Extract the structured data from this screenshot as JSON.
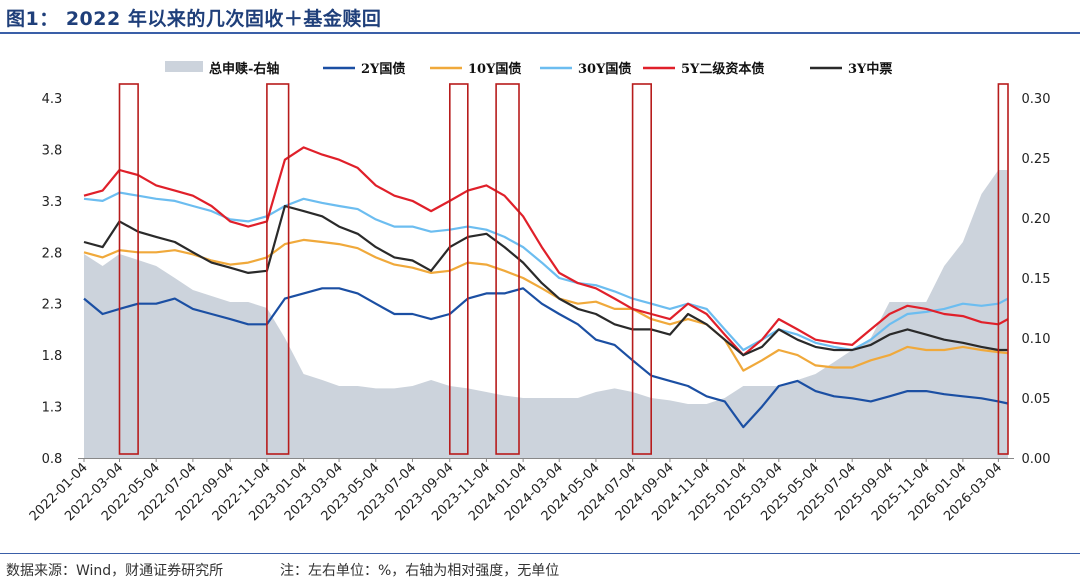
{
  "figure_title": "图1：  2022 年以来的几次固收＋基金赎回",
  "source_note": "数据来源：Wind，财通证券研究所",
  "unit_note": "注：左右单位：%，右轴为相对强度，无单位",
  "chart_data": {
    "type": "line",
    "legend_position": "top",
    "grid": false,
    "x_tick_labels": [
      "2022-01-04",
      "2022-03-04",
      "2022-05-04",
      "2022-07-04",
      "2022-09-04",
      "2022-11-04",
      "2023-01-04",
      "2023-03-04",
      "2023-05-04",
      "2023-07-04",
      "2023-09-04",
      "2023-11-04",
      "2024-01-04",
      "2024-03-04",
      "2024-05-04",
      "2024-07-04",
      "2024-09-04",
      "2024-11-04",
      "2025-01-04",
      "2025-03-04",
      "2025-05-04",
      "2025-07-04",
      "2025-09-04",
      "2025-11-04",
      "2026-01-04",
      "2026-03-04"
    ],
    "left_axis": {
      "ylim": [
        0.8,
        4.3
      ],
      "tick_labels": [
        "0.8",
        "1.3",
        "1.8",
        "2.3",
        "2.8",
        "3.3",
        "3.8",
        "4.3"
      ]
    },
    "right_axis": {
      "ylim": [
        0.0,
        0.3
      ],
      "tick_labels": [
        "0.00",
        "0.05",
        "0.10",
        "0.15",
        "0.20",
        "0.25",
        "0.30"
      ]
    },
    "series": [
      {
        "name": "总申赎-右轴",
        "kind": "area",
        "axis": "right",
        "color": "#ccd3dc",
        "x": [
          "2022-01-04",
          "2022-02-04",
          "2022-03-04",
          "2022-04-04",
          "2022-05-04",
          "2022-06-04",
          "2022-07-04",
          "2022-08-04",
          "2022-09-04",
          "2022-10-04",
          "2022-11-04",
          "2022-12-04",
          "2023-01-04",
          "2023-02-04",
          "2023-03-04",
          "2023-04-04",
          "2023-05-04",
          "2023-06-04",
          "2023-07-04",
          "2023-08-04",
          "2023-09-04",
          "2023-10-04",
          "2023-11-04",
          "2023-12-04",
          "2024-01-04",
          "2024-02-04",
          "2024-03-04",
          "2024-04-04",
          "2024-05-04",
          "2024-06-04",
          "2024-07-04",
          "2024-08-04",
          "2024-09-04",
          "2024-10-04",
          "2024-11-04",
          "2024-12-04",
          "2025-01-04",
          "2025-02-04",
          "2025-03-04",
          "2025-04-04",
          "2025-05-04",
          "2025-06-04",
          "2025-07-04",
          "2025-08-04",
          "2025-09-04",
          "2025-10-04",
          "2025-11-04",
          "2025-12-04",
          "2026-01-04",
          "2026-02-04",
          "2026-03-04",
          "2026-03-20"
        ],
        "values": [
          0.17,
          0.16,
          0.17,
          0.165,
          0.16,
          0.15,
          0.14,
          0.135,
          0.13,
          0.13,
          0.125,
          0.1,
          0.07,
          0.065,
          0.06,
          0.06,
          0.058,
          0.058,
          0.06,
          0.065,
          0.06,
          0.058,
          0.055,
          0.052,
          0.05,
          0.05,
          0.05,
          0.05,
          0.055,
          0.058,
          0.055,
          0.05,
          0.048,
          0.045,
          0.045,
          0.05,
          0.06,
          0.06,
          0.06,
          0.065,
          0.07,
          0.08,
          0.09,
          0.1,
          0.13,
          0.13,
          0.13,
          0.16,
          0.18,
          0.22,
          0.24,
          0.24
        ]
      },
      {
        "name": "2Y国债",
        "kind": "line",
        "axis": "left",
        "color": "#1b4fa3",
        "x": [
          "2022-01-04",
          "2022-02-04",
          "2022-03-04",
          "2022-04-04",
          "2022-05-04",
          "2022-06-04",
          "2022-07-04",
          "2022-08-04",
          "2022-09-04",
          "2022-10-04",
          "2022-11-04",
          "2022-12-04",
          "2023-01-04",
          "2023-02-04",
          "2023-03-04",
          "2023-04-04",
          "2023-05-04",
          "2023-06-04",
          "2023-07-04",
          "2023-08-04",
          "2023-09-04",
          "2023-10-04",
          "2023-11-04",
          "2023-12-04",
          "2024-01-04",
          "2024-02-04",
          "2024-03-04",
          "2024-04-04",
          "2024-05-04",
          "2024-06-04",
          "2024-07-04",
          "2024-08-04",
          "2024-09-04",
          "2024-10-04",
          "2024-11-04",
          "2024-12-04",
          "2025-01-04",
          "2025-02-04",
          "2025-03-04",
          "2025-04-04",
          "2025-05-04",
          "2025-06-04",
          "2025-07-04",
          "2025-08-04",
          "2025-09-04",
          "2025-10-04",
          "2025-11-04",
          "2025-12-04",
          "2026-01-04",
          "2026-02-04",
          "2026-03-04",
          "2026-03-20"
        ],
        "values": [
          2.35,
          2.2,
          2.25,
          2.3,
          2.3,
          2.35,
          2.25,
          2.2,
          2.15,
          2.1,
          2.1,
          2.35,
          2.4,
          2.45,
          2.45,
          2.4,
          2.3,
          2.2,
          2.2,
          2.15,
          2.2,
          2.35,
          2.4,
          2.4,
          2.45,
          2.3,
          2.2,
          2.1,
          1.95,
          1.9,
          1.75,
          1.6,
          1.55,
          1.5,
          1.4,
          1.35,
          1.1,
          1.3,
          1.5,
          1.55,
          1.45,
          1.4,
          1.38,
          1.35,
          1.4,
          1.45,
          1.45,
          1.42,
          1.4,
          1.38,
          1.35,
          1.33
        ]
      },
      {
        "name": "10Y国债",
        "kind": "line",
        "axis": "left",
        "color": "#f0a93b",
        "x": [
          "2022-01-04",
          "2022-02-04",
          "2022-03-04",
          "2022-04-04",
          "2022-05-04",
          "2022-06-04",
          "2022-07-04",
          "2022-08-04",
          "2022-09-04",
          "2022-10-04",
          "2022-11-04",
          "2022-12-04",
          "2023-01-04",
          "2023-02-04",
          "2023-03-04",
          "2023-04-04",
          "2023-05-04",
          "2023-06-04",
          "2023-07-04",
          "2023-08-04",
          "2023-09-04",
          "2023-10-04",
          "2023-11-04",
          "2023-12-04",
          "2024-01-04",
          "2024-02-04",
          "2024-03-04",
          "2024-04-04",
          "2024-05-04",
          "2024-06-04",
          "2024-07-04",
          "2024-08-04",
          "2024-09-04",
          "2024-10-04",
          "2024-11-04",
          "2024-12-04",
          "2025-01-04",
          "2025-02-04",
          "2025-03-04",
          "2025-04-04",
          "2025-05-04",
          "2025-06-04",
          "2025-07-04",
          "2025-08-04",
          "2025-09-04",
          "2025-10-04",
          "2025-11-04",
          "2025-12-04",
          "2026-01-04",
          "2026-02-04",
          "2026-03-04",
          "2026-03-20"
        ],
        "values": [
          2.8,
          2.75,
          2.82,
          2.8,
          2.8,
          2.82,
          2.78,
          2.72,
          2.68,
          2.7,
          2.75,
          2.88,
          2.92,
          2.9,
          2.88,
          2.84,
          2.75,
          2.68,
          2.65,
          2.6,
          2.62,
          2.7,
          2.68,
          2.62,
          2.55,
          2.45,
          2.35,
          2.3,
          2.32,
          2.25,
          2.25,
          2.15,
          2.1,
          2.15,
          2.1,
          1.95,
          1.65,
          1.75,
          1.85,
          1.8,
          1.7,
          1.68,
          1.68,
          1.75,
          1.8,
          1.88,
          1.85,
          1.85,
          1.88,
          1.85,
          1.83,
          1.82
        ]
      },
      {
        "name": "30Y国债",
        "kind": "line",
        "axis": "left",
        "color": "#6cbdf0",
        "x": [
          "2022-01-04",
          "2022-02-04",
          "2022-03-04",
          "2022-04-04",
          "2022-05-04",
          "2022-06-04",
          "2022-07-04",
          "2022-08-04",
          "2022-09-04",
          "2022-10-04",
          "2022-11-04",
          "2022-12-04",
          "2023-01-04",
          "2023-02-04",
          "2023-03-04",
          "2023-04-04",
          "2023-05-04",
          "2023-06-04",
          "2023-07-04",
          "2023-08-04",
          "2023-09-04",
          "2023-10-04",
          "2023-11-04",
          "2023-12-04",
          "2024-01-04",
          "2024-02-04",
          "2024-03-04",
          "2024-04-04",
          "2024-05-04",
          "2024-06-04",
          "2024-07-04",
          "2024-08-04",
          "2024-09-04",
          "2024-10-04",
          "2024-11-04",
          "2024-12-04",
          "2025-01-04",
          "2025-02-04",
          "2025-03-04",
          "2025-04-04",
          "2025-05-04",
          "2025-06-04",
          "2025-07-04",
          "2025-08-04",
          "2025-09-04",
          "2025-10-04",
          "2025-11-04",
          "2025-12-04",
          "2026-01-04",
          "2026-02-04",
          "2026-03-04",
          "2026-03-20"
        ],
        "values": [
          3.32,
          3.3,
          3.38,
          3.35,
          3.32,
          3.3,
          3.25,
          3.2,
          3.12,
          3.1,
          3.15,
          3.25,
          3.32,
          3.28,
          3.25,
          3.22,
          3.12,
          3.05,
          3.05,
          3.0,
          3.02,
          3.05,
          3.02,
          2.95,
          2.85,
          2.7,
          2.55,
          2.5,
          2.48,
          2.42,
          2.35,
          2.3,
          2.25,
          2.3,
          2.25,
          2.05,
          1.85,
          1.95,
          2.05,
          2.0,
          1.92,
          1.88,
          1.85,
          1.95,
          2.1,
          2.2,
          2.22,
          2.25,
          2.3,
          2.28,
          2.3,
          2.35
        ]
      },
      {
        "name": "5Y二级资本债",
        "kind": "line",
        "axis": "left",
        "color": "#e0202a",
        "x": [
          "2022-01-04",
          "2022-02-04",
          "2022-03-04",
          "2022-04-04",
          "2022-05-04",
          "2022-06-04",
          "2022-07-04",
          "2022-08-04",
          "2022-09-04",
          "2022-10-04",
          "2022-11-04",
          "2022-12-04",
          "2023-01-04",
          "2023-02-04",
          "2023-03-04",
          "2023-04-04",
          "2023-05-04",
          "2023-06-04",
          "2023-07-04",
          "2023-08-04",
          "2023-09-04",
          "2023-10-04",
          "2023-11-04",
          "2023-12-04",
          "2024-01-04",
          "2024-02-04",
          "2024-03-04",
          "2024-04-04",
          "2024-05-04",
          "2024-06-04",
          "2024-07-04",
          "2024-08-04",
          "2024-09-04",
          "2024-10-04",
          "2024-11-04",
          "2024-12-04",
          "2025-01-04",
          "2025-02-04",
          "2025-03-04",
          "2025-04-04",
          "2025-05-04",
          "2025-06-04",
          "2025-07-04",
          "2025-08-04",
          "2025-09-04",
          "2025-10-04",
          "2025-11-04",
          "2025-12-04",
          "2026-01-04",
          "2026-02-04",
          "2026-03-04",
          "2026-03-20"
        ],
        "values": [
          3.35,
          3.4,
          3.6,
          3.55,
          3.45,
          3.4,
          3.35,
          3.25,
          3.1,
          3.05,
          3.1,
          3.7,
          3.82,
          3.75,
          3.7,
          3.62,
          3.45,
          3.35,
          3.3,
          3.2,
          3.3,
          3.4,
          3.45,
          3.35,
          3.15,
          2.85,
          2.6,
          2.5,
          2.45,
          2.35,
          2.25,
          2.2,
          2.15,
          2.3,
          2.2,
          2.0,
          1.8,
          1.95,
          2.15,
          2.05,
          1.95,
          1.92,
          1.9,
          2.05,
          2.2,
          2.28,
          2.25,
          2.2,
          2.18,
          2.12,
          2.1,
          2.15
        ]
      },
      {
        "name": "3Y中票",
        "kind": "line",
        "axis": "left",
        "color": "#2a2a2a",
        "x": [
          "2022-01-04",
          "2022-02-04",
          "2022-03-04",
          "2022-04-04",
          "2022-05-04",
          "2022-06-04",
          "2022-07-04",
          "2022-08-04",
          "2022-09-04",
          "2022-10-04",
          "2022-11-04",
          "2022-12-04",
          "2023-01-04",
          "2023-02-04",
          "2023-03-04",
          "2023-04-04",
          "2023-05-04",
          "2023-06-04",
          "2023-07-04",
          "2023-08-04",
          "2023-09-04",
          "2023-10-04",
          "2023-11-04",
          "2023-12-04",
          "2024-01-04",
          "2024-02-04",
          "2024-03-04",
          "2024-04-04",
          "2024-05-04",
          "2024-06-04",
          "2024-07-04",
          "2024-08-04",
          "2024-09-04",
          "2024-10-04",
          "2024-11-04",
          "2024-12-04",
          "2025-01-04",
          "2025-02-04",
          "2025-03-04",
          "2025-04-04",
          "2025-05-04",
          "2025-06-04",
          "2025-07-04",
          "2025-08-04",
          "2025-09-04",
          "2025-10-04",
          "2025-11-04",
          "2025-12-04",
          "2026-01-04",
          "2026-02-04",
          "2026-03-04",
          "2026-03-20"
        ],
        "values": [
          2.9,
          2.85,
          3.1,
          3.0,
          2.95,
          2.9,
          2.8,
          2.7,
          2.65,
          2.6,
          2.62,
          3.25,
          3.2,
          3.15,
          3.05,
          2.98,
          2.85,
          2.75,
          2.72,
          2.62,
          2.85,
          2.95,
          2.98,
          2.85,
          2.7,
          2.5,
          2.35,
          2.25,
          2.2,
          2.1,
          2.05,
          2.05,
          2.0,
          2.2,
          2.1,
          1.95,
          1.8,
          1.88,
          2.05,
          1.95,
          1.88,
          1.85,
          1.85,
          1.9,
          2.0,
          2.05,
          2.0,
          1.95,
          1.92,
          1.88,
          1.85,
          1.85
        ]
      }
    ],
    "highlight_windows": [
      [
        "2022-03-04",
        "2022-04-04"
      ],
      [
        "2022-11-04",
        "2022-12-10"
      ],
      [
        "2023-09-04",
        "2023-10-04"
      ],
      [
        "2023-11-20",
        "2023-12-28"
      ],
      [
        "2024-07-04",
        "2024-08-04"
      ],
      [
        "2026-03-04",
        "2026-03-20"
      ]
    ],
    "highlight_color": "#b71c1c"
  }
}
